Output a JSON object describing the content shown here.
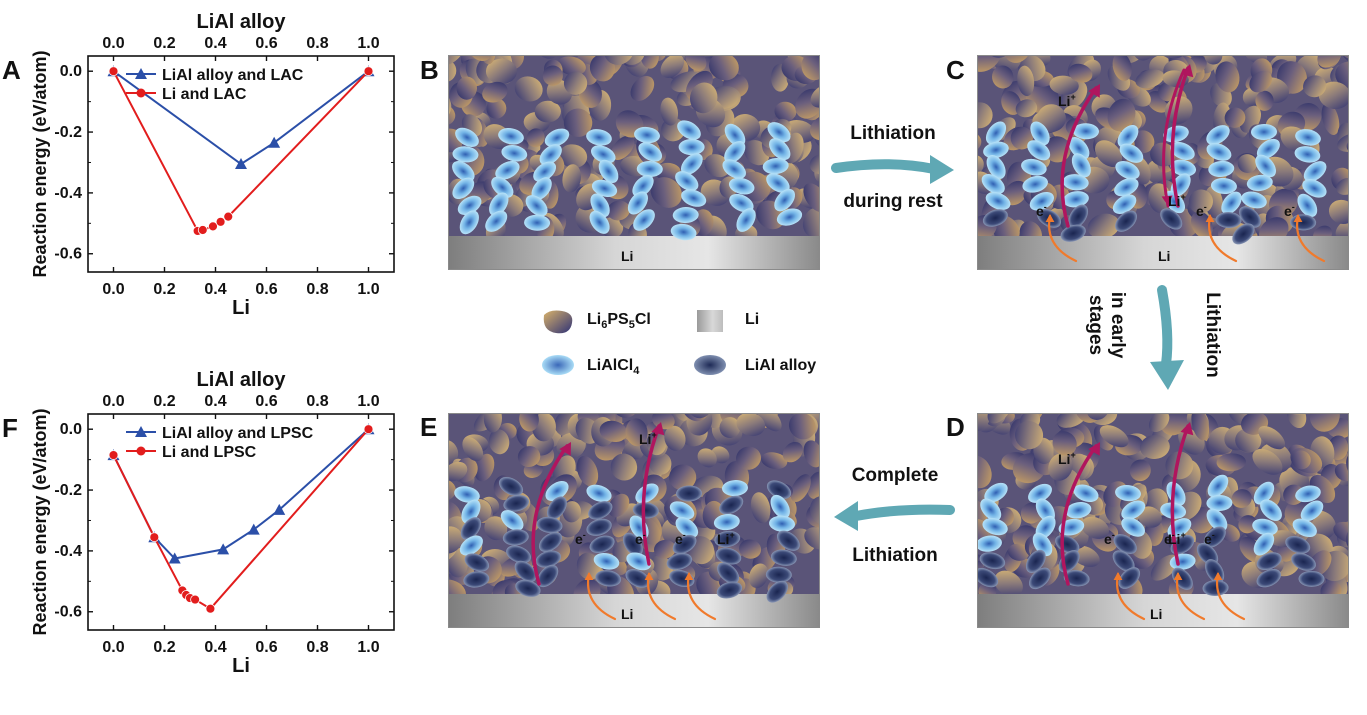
{
  "chart_data": [
    {
      "panel": "A",
      "type": "line",
      "top_axis_label": "LiAl alloy",
      "xlabel": "Li",
      "ylabel": "Reaction energy (eV/atom)",
      "x_ticks": [
        "0.0",
        "0.2",
        "0.4",
        "0.6",
        "0.8",
        "1.0"
      ],
      "y_ticks": [
        "0.0",
        "-0.2",
        "-0.4",
        "-0.6"
      ],
      "xlim": [
        -0.1,
        1.1
      ],
      "ylim": [
        -0.66,
        0.05
      ],
      "legend_position": "top-left",
      "series": [
        {
          "name": "LiAl alloy and LAC",
          "color": "#2b4fa8",
          "marker": "triangle",
          "x": [
            0.0,
            0.5,
            0.63,
            1.0
          ],
          "y": [
            0.0,
            -0.305,
            -0.235,
            0.0
          ]
        },
        {
          "name": "Li and LAC",
          "color": "#e21d1d",
          "marker": "circle",
          "x": [
            0.0,
            0.33,
            0.35,
            0.39,
            0.42,
            0.45,
            1.0
          ],
          "y": [
            0.0,
            -0.525,
            -0.522,
            -0.51,
            -0.495,
            -0.478,
            0.0
          ]
        }
      ]
    },
    {
      "panel": "F",
      "type": "line",
      "top_axis_label": "LiAl alloy",
      "xlabel": "Li",
      "ylabel": "Reaction energy (eV/atom)",
      "x_ticks": [
        "0.0",
        "0.2",
        "0.4",
        "0.6",
        "0.8",
        "1.0"
      ],
      "y_ticks": [
        "0.0",
        "-0.2",
        "-0.4",
        "-0.6"
      ],
      "xlim": [
        -0.1,
        1.1
      ],
      "ylim": [
        -0.66,
        0.05
      ],
      "legend_position": "top-left",
      "series": [
        {
          "name": "LiAl alloy and LPSC",
          "color": "#2b4fa8",
          "marker": "triangle",
          "x": [
            0.0,
            0.16,
            0.24,
            0.43,
            0.55,
            0.65,
            1.0
          ],
          "y": [
            -0.085,
            -0.355,
            -0.425,
            -0.395,
            -0.33,
            -0.265,
            0.0
          ]
        },
        {
          "name": "Li and LPSC",
          "color": "#e21d1d",
          "marker": "circle",
          "x": [
            0.0,
            0.16,
            0.27,
            0.285,
            0.3,
            0.32,
            0.38,
            1.0
          ],
          "y": [
            -0.085,
            -0.355,
            -0.53,
            -0.545,
            -0.555,
            -0.56,
            -0.59,
            0.0
          ]
        }
      ]
    }
  ],
  "schematic": {
    "panels": [
      "B",
      "C",
      "D",
      "E"
    ],
    "labels": {
      "li": "Li",
      "li_ion": "Li",
      "ion_sup": "+",
      "electron": "e",
      "elec_sup": "-"
    },
    "arrows": {
      "b_to_c_line1": "Lithiation",
      "b_to_c_line2": "during rest",
      "c_to_d_rot1": "Lithiation",
      "c_to_d_rot2a": "in early",
      "c_to_d_rot2b": "stages",
      "d_to_e_line1": "Complete",
      "d_to_e_line2": "Lithiation"
    },
    "legend": {
      "lpsc_base": "Li",
      "lpsc_s1": "6",
      "lpsc_mid1": "PS",
      "lpsc_s2": "5",
      "lpsc_tail": "Cl",
      "lac_base": "LiAlCl",
      "lac_sub": "4",
      "li": "Li",
      "alloy": "LiAl alloy"
    },
    "colors": {
      "arrow_teal": "#5fa8b4",
      "li_ion_arrow": "#b0155e",
      "electron_arrow": "#f07a2c",
      "lac_blue": "#8ecdf0",
      "alloy_dark": "#1f2a52"
    }
  }
}
